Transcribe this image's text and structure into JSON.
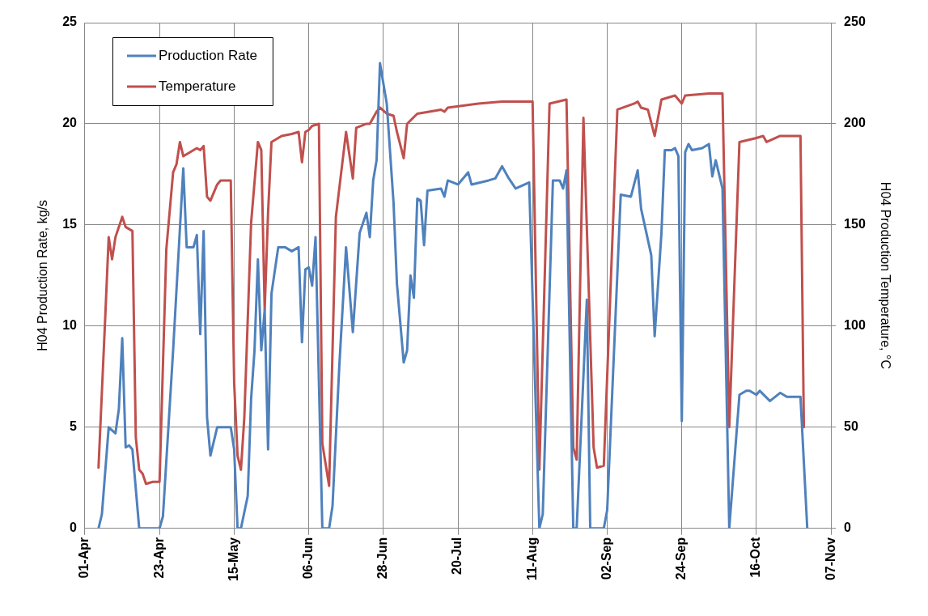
{
  "chart_data": {
    "type": "line",
    "ylabel": "H04 Production Rate, kg/s",
    "y2label": "H04 Production Temperature, °C",
    "xlim": [
      "--04-01",
      "--11-07"
    ],
    "xticks": [
      {
        "value": "--04-01",
        "label": "01-Apr"
      },
      {
        "value": "--04-23",
        "label": "23-Apr"
      },
      {
        "value": "--05-15",
        "label": "15-May"
      },
      {
        "value": "--06-06",
        "label": "06-Jun"
      },
      {
        "value": "--06-28",
        "label": "28-Jun"
      },
      {
        "value": "--07-20",
        "label": "20-Jul"
      },
      {
        "value": "--08-11",
        "label": "11-Aug"
      },
      {
        "value": "--09-02",
        "label": "02-Sep"
      },
      {
        "value": "--09-24",
        "label": "24-Sep"
      },
      {
        "value": "--10-16",
        "label": "16-Oct"
      },
      {
        "value": "--11-07",
        "label": "07-Nov"
      }
    ],
    "ylim": [
      0,
      25
    ],
    "yticks": [
      0,
      5,
      10,
      15,
      20,
      25
    ],
    "y2lim": [
      0,
      250
    ],
    "y2ticks": [
      0,
      50,
      100,
      150,
      200,
      250
    ],
    "grid": true,
    "legend": "top left",
    "marker": "none",
    "line_style": "solid",
    "series": [
      {
        "name": "Production Rate",
        "color": "#4f81bd",
        "x": [
          "--04-05",
          "--04-06",
          "--04-08",
          "--04-10",
          "--04-11",
          "--04-12",
          "--04-13",
          "--04-14",
          "--04-15",
          "--04-17",
          "--04-23",
          "--04-24",
          "--04-27",
          "--04-30",
          "--05-01",
          "--05-03",
          "--05-04",
          "--05-05",
          "--05-06",
          "--05-07",
          "--05-08",
          "--05-10",
          "--05-14",
          "--05-15",
          "--05-16",
          "--05-17",
          "--05-19",
          "--05-20",
          "--05-21",
          "--05-22",
          "--05-23",
          "--05-24",
          "--05-25",
          "--05-26",
          "--05-28",
          "--05-30",
          "--06-01",
          "--06-03",
          "--06-04",
          "--06-05",
          "--06-06",
          "--06-07",
          "--06-08",
          "--06-10",
          "--06-12",
          "--06-13",
          "--06-15",
          "--06-17",
          "--06-19",
          "--06-21",
          "--06-23",
          "--06-24",
          "--06-25",
          "--06-26",
          "--06-27",
          "--06-29",
          "--07-01",
          "--07-02",
          "--07-04",
          "--07-05",
          "--07-06",
          "--07-07",
          "--07-08",
          "--07-09",
          "--07-10",
          "--07-11",
          "--07-15",
          "--07-16",
          "--07-17",
          "--07-20",
          "--07-23",
          "--07-24",
          "--07-29",
          "--07-31",
          "--08-02",
          "--08-04",
          "--08-06",
          "--08-10",
          "--08-13",
          "--08-14",
          "--08-17",
          "--08-19",
          "--08-20",
          "--08-21",
          "--08-23",
          "--08-24",
          "--08-27",
          "--08-28",
          "--09-01",
          "--09-02",
          "--09-06",
          "--09-09",
          "--09-11",
          "--09-12",
          "--09-15",
          "--09-16",
          "--09-18",
          "--09-19",
          "--09-21",
          "--09-22",
          "--09-23",
          "--09-24",
          "--09-25",
          "--09-26",
          "--09-27",
          "--09-30",
          "--10-02",
          "--10-03",
          "--10-04",
          "--10-06",
          "--10-08",
          "--10-11",
          "--10-13",
          "--10-14",
          "--10-16",
          "--10-17",
          "--10-20",
          "--10-23",
          "--10-25",
          "--10-29",
          "--10-31"
        ],
        "values": [
          0,
          0.7,
          5.0,
          4.7,
          5.9,
          9.4,
          4.0,
          4.1,
          3.9,
          0,
          0,
          0.6,
          8.8,
          17.8,
          13.9,
          13.9,
          14.5,
          9.6,
          14.7,
          5.5,
          3.6,
          5.0,
          5.0,
          3.9,
          0,
          0,
          1.6,
          6.4,
          8.8,
          13.3,
          8.8,
          10.8,
          3.9,
          11.6,
          13.9,
          13.9,
          13.7,
          13.9,
          9.2,
          12.8,
          12.9,
          12.0,
          14.4,
          0,
          0,
          1.1,
          8.0,
          13.9,
          9.7,
          14.6,
          15.6,
          14.4,
          17.2,
          18.2,
          23.0,
          21.0,
          16.1,
          12.1,
          8.2,
          8.8,
          12.5,
          11.4,
          16.3,
          16.2,
          14.0,
          16.7,
          16.8,
          16.4,
          17.2,
          17.0,
          17.6,
          17.0,
          17.2,
          17.3,
          17.9,
          17.3,
          16.8,
          17.1,
          0,
          0.7,
          17.2,
          17.2,
          16.8,
          17.7,
          0,
          0,
          11.3,
          0,
          0,
          0.9,
          16.5,
          16.4,
          17.7,
          15.8,
          13.5,
          9.5,
          14.6,
          18.7,
          18.7,
          18.8,
          18.4,
          5.3,
          18.6,
          19.0,
          18.7,
          18.8,
          19.0,
          17.4,
          18.2,
          16.8,
          0,
          6.6,
          6.8,
          6.8,
          6.6,
          6.8,
          6.3,
          6.7,
          6.5,
          6.5,
          0
        ]
      },
      {
        "name": "Temperature",
        "color": "#c0504d",
        "axis": "y2",
        "x": [
          "--04-05",
          "--04-07",
          "--04-08",
          "--04-09",
          "--04-10",
          "--04-12",
          "--04-13",
          "--04-15",
          "--04-16",
          "--04-17",
          "--04-18",
          "--04-19",
          "--04-21",
          "--04-23",
          "--04-25",
          "--04-27",
          "--04-28",
          "--04-29",
          "--04-30",
          "--05-04",
          "--05-05",
          "--05-06",
          "--05-07",
          "--05-08",
          "--05-10",
          "--05-11",
          "--05-14",
          "--05-15",
          "--05-16",
          "--05-17",
          "--05-18",
          "--05-20",
          "--05-22",
          "--05-23",
          "--05-24",
          "--05-25",
          "--05-26",
          "--05-29",
          "--06-01",
          "--06-03",
          "--06-04",
          "--06-05",
          "--06-06",
          "--06-07",
          "--06-09",
          "--06-10",
          "--06-12",
          "--06-14",
          "--06-17",
          "--06-19",
          "--06-20",
          "--06-23",
          "--06-24",
          "--06-26",
          "--06-27",
          "--06-29",
          "--07-01",
          "--07-02",
          "--07-04",
          "--07-05",
          "--07-08",
          "--07-15",
          "--07-16",
          "--07-17",
          "--07-26",
          "--08-02",
          "--08-11",
          "--08-13",
          "--08-16",
          "--08-21",
          "--08-23",
          "--08-24",
          "--08-26",
          "--08-29",
          "--08-30",
          "--09-01",
          "--09-05",
          "--09-10",
          "--09-11",
          "--09-12",
          "--09-14",
          "--09-16",
          "--09-18",
          "--09-22",
          "--09-24",
          "--09-25",
          "--10-02",
          "--10-06",
          "--10-08",
          "--10-11",
          "--10-16",
          "--10-18",
          "--10-19",
          "--10-23",
          "--10-29",
          "--10-30"
        ],
        "values": [
          30,
          105,
          144,
          133,
          144,
          154,
          149,
          147,
          45,
          29,
          27,
          22,
          23,
          23,
          138,
          176,
          180,
          191,
          184,
          188,
          187,
          189,
          164,
          162,
          170,
          172,
          172,
          72,
          36,
          29,
          55,
          151,
          191,
          187,
          108,
          156,
          191,
          194,
          195,
          196,
          181,
          196,
          197,
          199,
          200,
          42,
          21,
          154,
          196,
          173,
          198,
          200,
          200,
          206,
          208,
          205,
          204,
          196,
          183,
          200,
          205,
          207,
          206,
          208,
          210,
          211,
          211,
          29,
          210,
          212,
          40,
          34,
          203,
          40,
          30,
          31,
          207,
          210,
          211,
          208,
          207,
          194,
          212,
          214,
          210,
          214,
          215,
          215,
          50,
          191,
          193,
          194,
          191,
          194,
          194,
          50
        ]
      }
    ]
  }
}
